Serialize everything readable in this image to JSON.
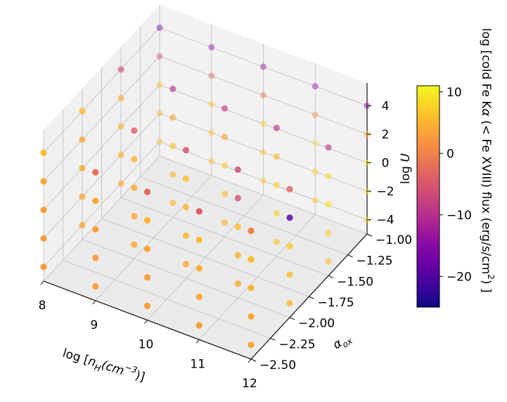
{
  "chart_data": {
    "type": "scatter",
    "projection": "3d",
    "x_axis": {
      "ticks": [
        "8",
        "9",
        "10",
        "11",
        "12"
      ],
      "label_prefix": "log  [",
      "label_n": "n",
      "label_sub": "H",
      "label_paren_open": "(",
      "label_unit": "cm",
      "label_exp": "−3",
      "label_suffix": ")]",
      "range": [
        8,
        12
      ]
    },
    "y_axis": {
      "ticks": [
        "−1.00",
        "−1.25",
        "−1.50",
        "−1.75",
        "−2.00",
        "−2.25",
        "−2.50"
      ],
      "label_alpha": "α",
      "label_sub": "ox",
      "range": [
        -2.5,
        -1.0
      ]
    },
    "z_axis": {
      "ticks": [
        "4",
        "2",
        "0",
        "−2",
        "−4"
      ],
      "label_log": "log ",
      "label_var": "U",
      "range": [
        -4,
        4
      ]
    },
    "colorbar": {
      "colormap": "plasma",
      "range": [
        -25,
        11
      ],
      "ticks": [
        "10",
        "0",
        "−10",
        "−20"
      ],
      "label_part1": "log  [cold Fe K",
      "label_alpha": "α",
      "label_part2": " (< Fe XVIII) flux (erg/s/cm",
      "label_sup": "2",
      "label_part3": ") ]"
    },
    "grid": true,
    "pane_color": "#f2f2f2",
    "data_points": [
      {
        "x": 8.0,
        "y": -2.5,
        "z": -4,
        "c": 3
      },
      {
        "x": 8.0,
        "y": -2.5,
        "z": -2,
        "c": 3
      },
      {
        "x": 8.0,
        "y": -2.5,
        "z": 0,
        "c": 3
      },
      {
        "x": 8.0,
        "y": -2.5,
        "z": 2,
        "c": 4
      },
      {
        "x": 8.0,
        "y": -2.5,
        "z": 4,
        "c": 6
      },
      {
        "x": 8.0,
        "y": -2.0,
        "z": -4,
        "c": 4
      },
      {
        "x": 8.0,
        "y": -2.0,
        "z": -2,
        "c": 4
      },
      {
        "x": 8.0,
        "y": -2.0,
        "z": 0,
        "c": 4
      },
      {
        "x": 8.0,
        "y": -2.0,
        "z": 2,
        "c": 4
      },
      {
        "x": 8.0,
        "y": -2.0,
        "z": 4,
        "c": 6
      },
      {
        "x": 8.0,
        "y": -1.5,
        "z": -4,
        "c": 4
      },
      {
        "x": 8.0,
        "y": -1.5,
        "z": -2,
        "c": 5
      },
      {
        "x": 8.0,
        "y": -1.5,
        "z": 0,
        "c": 5
      },
      {
        "x": 8.0,
        "y": -1.5,
        "z": 2,
        "c": 4
      },
      {
        "x": 8.0,
        "y": -1.5,
        "z": 4,
        "c": -6
      },
      {
        "x": 8.0,
        "y": -1.0,
        "z": -4,
        "c": 5
      },
      {
        "x": 8.0,
        "y": -1.0,
        "z": -2,
        "c": 5
      },
      {
        "x": 8.0,
        "y": -1.0,
        "z": 0,
        "c": 6
      },
      {
        "x": 8.0,
        "y": -1.0,
        "z": 2,
        "c": -5
      },
      {
        "x": 8.0,
        "y": -1.0,
        "z": 4,
        "c": -16
      },
      {
        "x": 9.0,
        "y": -2.5,
        "z": -4,
        "c": 3
      },
      {
        "x": 9.0,
        "y": -2.5,
        "z": -2,
        "c": 3
      },
      {
        "x": 9.0,
        "y": -2.5,
        "z": 0,
        "c": 3
      },
      {
        "x": 9.0,
        "y": -2.5,
        "z": 2,
        "c": 4
      },
      {
        "x": 9.0,
        "y": -2.5,
        "z": 4,
        "c": -2
      },
      {
        "x": 9.0,
        "y": -2.0,
        "z": -4,
        "c": 4
      },
      {
        "x": 9.0,
        "y": -2.0,
        "z": -2,
        "c": 4
      },
      {
        "x": 9.0,
        "y": -2.0,
        "z": 0,
        "c": 4
      },
      {
        "x": 9.0,
        "y": -2.0,
        "z": 2,
        "c": 5
      },
      {
        "x": 9.0,
        "y": -2.0,
        "z": 4,
        "c": -4
      },
      {
        "x": 9.0,
        "y": -1.5,
        "z": -4,
        "c": 5
      },
      {
        "x": 9.0,
        "y": -1.5,
        "z": -2,
        "c": 5
      },
      {
        "x": 9.0,
        "y": -1.5,
        "z": 0,
        "c": 6
      },
      {
        "x": 9.0,
        "y": -1.5,
        "z": 2,
        "c": 3
      },
      {
        "x": 9.0,
        "y": -1.5,
        "z": 4,
        "c": -10
      },
      {
        "x": 9.0,
        "y": -1.0,
        "z": -4,
        "c": 6
      },
      {
        "x": 9.0,
        "y": -1.0,
        "z": -2,
        "c": 6
      },
      {
        "x": 9.0,
        "y": -1.0,
        "z": 0,
        "c": 7
      },
      {
        "x": 9.0,
        "y": -1.0,
        "z": 2,
        "c": -3
      },
      {
        "x": 9.0,
        "y": -1.0,
        "z": 4,
        "c": -14
      },
      {
        "x": 10.0,
        "y": -2.5,
        "z": -4,
        "c": 3
      },
      {
        "x": 10.0,
        "y": -2.5,
        "z": -2,
        "c": 3
      },
      {
        "x": 10.0,
        "y": -2.5,
        "z": 0,
        "c": 4
      },
      {
        "x": 10.0,
        "y": -2.5,
        "z": 2,
        "c": 5
      },
      {
        "x": 10.0,
        "y": -2.5,
        "z": 4,
        "c": -3
      },
      {
        "x": 10.0,
        "y": -2.0,
        "z": -4,
        "c": 4
      },
      {
        "x": 10.0,
        "y": -2.0,
        "z": -2,
        "c": 5
      },
      {
        "x": 10.0,
        "y": -2.0,
        "z": 0,
        "c": 5
      },
      {
        "x": 10.0,
        "y": -2.0,
        "z": 2,
        "c": 6
      },
      {
        "x": 10.0,
        "y": -2.0,
        "z": 4,
        "c": -6
      },
      {
        "x": 10.0,
        "y": -1.5,
        "z": -4,
        "c": 5
      },
      {
        "x": 10.0,
        "y": -1.5,
        "z": -2,
        "c": 6
      },
      {
        "x": 10.0,
        "y": -1.5,
        "z": 0,
        "c": 7
      },
      {
        "x": 10.0,
        "y": -1.5,
        "z": 2,
        "c": 4
      },
      {
        "x": 10.0,
        "y": -1.5,
        "z": 4,
        "c": -9
      },
      {
        "x": 10.0,
        "y": -1.0,
        "z": -4,
        "c": 6
      },
      {
        "x": 10.0,
        "y": -1.0,
        "z": -2,
        "c": 7
      },
      {
        "x": 10.0,
        "y": -1.0,
        "z": 0,
        "c": 8
      },
      {
        "x": 10.0,
        "y": -1.0,
        "z": 2,
        "c": -1
      },
      {
        "x": 10.0,
        "y": -1.0,
        "z": 4,
        "c": -13
      },
      {
        "x": 11.0,
        "y": -2.5,
        "z": -4,
        "c": 3
      },
      {
        "x": 11.0,
        "y": -2.5,
        "z": -2,
        "c": 4
      },
      {
        "x": 11.0,
        "y": -2.5,
        "z": 0,
        "c": 5
      },
      {
        "x": 11.0,
        "y": -2.5,
        "z": 2,
        "c": 6
      },
      {
        "x": 11.0,
        "y": -2.5,
        "z": 4,
        "c": -4
      },
      {
        "x": 11.0,
        "y": -2.0,
        "z": -4,
        "c": 4
      },
      {
        "x": 11.0,
        "y": -2.0,
        "z": -2,
        "c": 5
      },
      {
        "x": 11.0,
        "y": -2.0,
        "z": 0,
        "c": 6
      },
      {
        "x": 11.0,
        "y": -2.0,
        "z": 2,
        "c": -6
      },
      {
        "x": 11.0,
        "y": -2.0,
        "z": 4,
        "c": -7
      },
      {
        "x": 11.0,
        "y": -1.5,
        "z": -4,
        "c": 6
      },
      {
        "x": 11.0,
        "y": -1.5,
        "z": -2,
        "c": 7
      },
      {
        "x": 11.0,
        "y": -1.5,
        "z": 0,
        "c": 8
      },
      {
        "x": 11.0,
        "y": -1.5,
        "z": 2,
        "c": 5
      },
      {
        "x": 11.0,
        "y": -1.5,
        "z": 4,
        "c": -10
      },
      {
        "x": 11.0,
        "y": -1.0,
        "z": -4,
        "c": 7
      },
      {
        "x": 11.0,
        "y": -1.0,
        "z": -2,
        "c": 8
      },
      {
        "x": 11.0,
        "y": -1.0,
        "z": 0,
        "c": 9
      },
      {
        "x": 11.0,
        "y": -1.0,
        "z": 2,
        "c": 2
      },
      {
        "x": 11.0,
        "y": -1.0,
        "z": 4,
        "c": -14
      },
      {
        "x": 12.0,
        "y": -2.5,
        "z": -4,
        "c": 4
      },
      {
        "x": 12.0,
        "y": -2.5,
        "z": -2,
        "c": 4
      },
      {
        "x": 12.0,
        "y": -2.5,
        "z": 0,
        "c": 5
      },
      {
        "x": 12.0,
        "y": -2.5,
        "z": 2,
        "c": 6
      },
      {
        "x": 12.0,
        "y": -2.5,
        "z": 4,
        "c": 0
      },
      {
        "x": 12.0,
        "y": -2.0,
        "z": -4,
        "c": 5
      },
      {
        "x": 12.0,
        "y": -2.0,
        "z": -2,
        "c": 6
      },
      {
        "x": 12.0,
        "y": -2.0,
        "z": 0,
        "c": 7
      },
      {
        "x": 12.0,
        "y": -2.0,
        "z": 2,
        "c": -20
      },
      {
        "x": 12.0,
        "y": -2.0,
        "z": 4,
        "c": -3
      },
      {
        "x": 12.0,
        "y": -1.5,
        "z": -4,
        "c": 6
      },
      {
        "x": 12.0,
        "y": -1.5,
        "z": -2,
        "c": 7
      },
      {
        "x": 12.0,
        "y": -1.5,
        "z": 0,
        "c": 9
      },
      {
        "x": 12.0,
        "y": -1.5,
        "z": 2,
        "c": 8
      },
      {
        "x": 12.0,
        "y": -1.5,
        "z": 4,
        "c": -9
      },
      {
        "x": 12.0,
        "y": -1.0,
        "z": -4,
        "c": 8
      },
      {
        "x": 12.0,
        "y": -1.0,
        "z": -2,
        "c": 9
      },
      {
        "x": 12.0,
        "y": -1.0,
        "z": 0,
        "c": 10
      },
      {
        "x": 12.0,
        "y": -1.0,
        "z": 2,
        "c": 5
      },
      {
        "x": 12.0,
        "y": -1.0,
        "z": 4,
        "c": -15
      }
    ]
  }
}
